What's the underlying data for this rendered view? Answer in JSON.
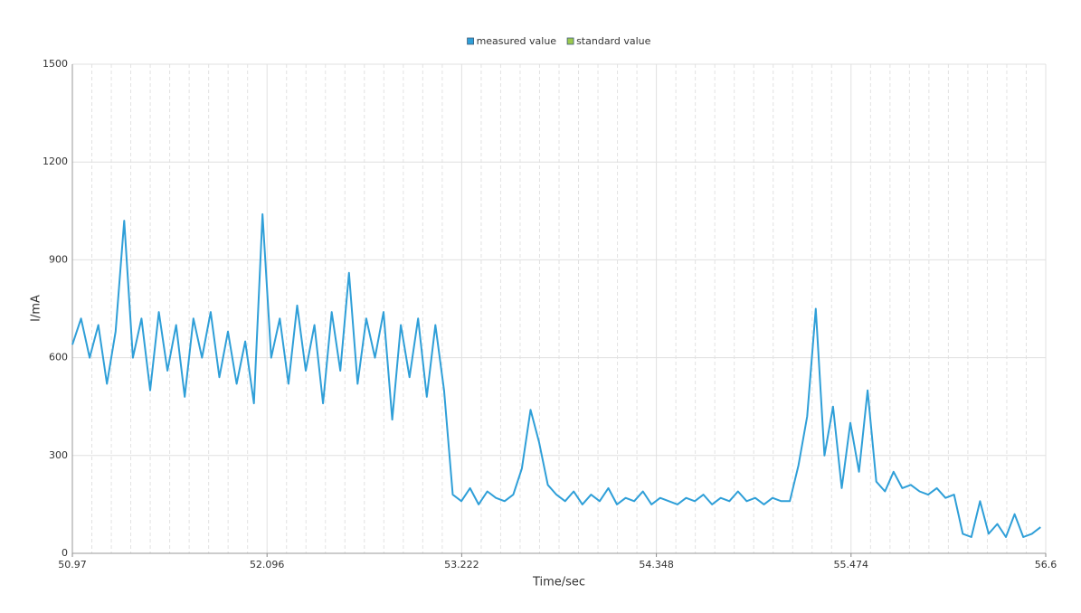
{
  "chart_data": {
    "type": "line",
    "xlabel": "Time/sec",
    "ylabel": "I/mA",
    "xlim": [
      50.97,
      56.6
    ],
    "xticks": [
      50.97,
      52.096,
      53.222,
      54.348,
      55.474,
      56.6
    ],
    "ylim": [
      0,
      1500
    ],
    "yticks": [
      0,
      300,
      600,
      900,
      1200,
      1500
    ],
    "grid": true,
    "minor_x_divisions": 10,
    "legend": "top",
    "series": [
      {
        "name": "measured value",
        "color": "#2f9fd8",
        "x": [
          50.97,
          51.02,
          51.07,
          51.12,
          51.17,
          51.22,
          51.27,
          51.32,
          51.37,
          51.42,
          51.47,
          51.52,
          51.57,
          51.62,
          51.67,
          51.72,
          51.77,
          51.82,
          51.87,
          51.92,
          51.97,
          52.02,
          52.07,
          52.12,
          52.17,
          52.22,
          52.27,
          52.32,
          52.37,
          52.42,
          52.47,
          52.52,
          52.57,
          52.62,
          52.67,
          52.72,
          52.77,
          52.82,
          52.87,
          52.92,
          52.97,
          53.02,
          53.07,
          53.12,
          53.17,
          53.22,
          53.27,
          53.32,
          53.37,
          53.42,
          53.47,
          53.52,
          53.57,
          53.62,
          53.67,
          53.72,
          53.77,
          53.82,
          53.87,
          53.92,
          53.97,
          54.02,
          54.07,
          54.12,
          54.17,
          54.22,
          54.27,
          54.32,
          54.37,
          54.42,
          54.47,
          54.52,
          54.57,
          54.62,
          54.67,
          54.72,
          54.77,
          54.82,
          54.87,
          54.92,
          54.97,
          55.02,
          55.07,
          55.12,
          55.17,
          55.22,
          55.27,
          55.32,
          55.37,
          55.42,
          55.47,
          55.52,
          55.57,
          55.62,
          55.67,
          55.72,
          55.77,
          55.82,
          55.87,
          55.92,
          55.97,
          56.02,
          56.07,
          56.12,
          56.17,
          56.22,
          56.27,
          56.32,
          56.37,
          56.42,
          56.47,
          56.52,
          56.57
        ],
        "values": [
          640,
          720,
          600,
          700,
          520,
          680,
          1020,
          600,
          720,
          500,
          740,
          560,
          700,
          480,
          720,
          600,
          740,
          540,
          680,
          520,
          650,
          460,
          1040,
          600,
          720,
          520,
          760,
          560,
          700,
          460,
          740,
          560,
          860,
          520,
          720,
          600,
          740,
          410,
          700,
          540,
          720,
          480,
          700,
          500,
          180,
          160,
          200,
          150,
          190,
          170,
          160,
          180,
          260,
          440,
          340,
          210,
          180,
          160,
          190,
          150,
          180,
          160,
          200,
          150,
          170,
          160,
          190,
          150,
          170,
          160,
          150,
          170,
          160,
          180,
          150,
          170,
          160,
          190,
          160,
          170,
          150,
          170,
          160,
          160,
          270,
          420,
          750,
          300,
          450,
          200,
          400,
          250,
          500,
          220,
          190,
          250,
          200,
          210,
          190,
          180,
          200,
          170,
          180,
          60,
          50,
          160,
          60,
          90,
          50,
          120,
          50,
          60,
          80
        ]
      },
      {
        "name": "standard value",
        "color": "#9cc94d",
        "x": [],
        "values": []
      }
    ]
  }
}
